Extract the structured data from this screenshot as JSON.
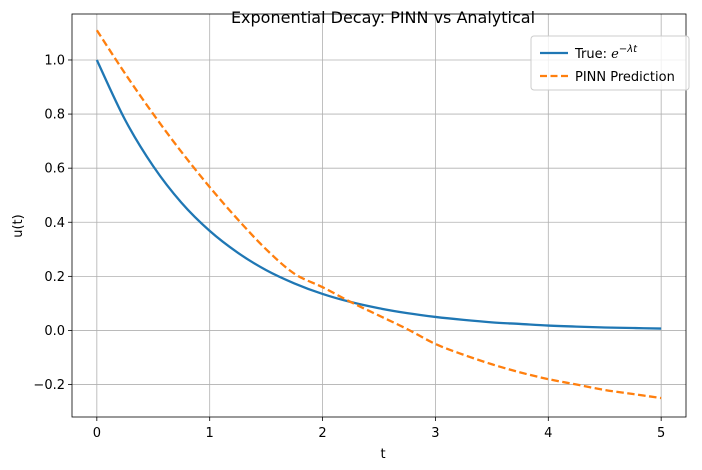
{
  "chart_data": {
    "type": "line",
    "title": "Exponential Decay: PINN vs Analytical",
    "xlabel": "t",
    "ylabel": "u(t)",
    "xlim": [
      -0.22,
      5.22
    ],
    "ylim": [
      -0.32,
      1.17
    ],
    "xticks": [
      0,
      1,
      2,
      3,
      4,
      5
    ],
    "xtick_labels": [
      "0",
      "1",
      "2",
      "3",
      "4",
      "5"
    ],
    "yticks": [
      -0.2,
      0.0,
      0.2,
      0.4,
      0.6,
      0.8,
      1.0
    ],
    "ytick_labels": [
      "−0.2",
      "0.0",
      "0.2",
      "0.4",
      "0.6",
      "0.8",
      "1.0"
    ],
    "grid": true,
    "legend_position": "top-right",
    "series": [
      {
        "name": "True: e^{−λt}",
        "legend_prefix": "True: ",
        "legend_math_base": "e",
        "legend_math_sup": "−λt",
        "color": "#1f77b4",
        "style": "solid",
        "x": [
          0,
          0.25,
          0.5,
          0.75,
          1,
          1.25,
          1.5,
          1.75,
          2,
          2.25,
          2.5,
          2.75,
          3,
          3.25,
          3.5,
          3.75,
          4,
          4.25,
          4.5,
          4.75,
          5
        ],
        "y": [
          1.0,
          0.779,
          0.607,
          0.472,
          0.368,
          0.287,
          0.223,
          0.174,
          0.135,
          0.105,
          0.082,
          0.064,
          0.05,
          0.039,
          0.03,
          0.024,
          0.018,
          0.014,
          0.011,
          0.009,
          0.007
        ]
      },
      {
        "name": "PINN Prediction",
        "color": "#ff7f0e",
        "style": "dashed",
        "x": [
          0,
          0.25,
          0.5,
          0.75,
          1,
          1.25,
          1.5,
          1.75,
          2,
          2.25,
          2.5,
          2.75,
          3,
          3.25,
          3.5,
          3.75,
          4,
          4.25,
          4.5,
          4.75,
          5
        ],
        "y": [
          1.11,
          0.95,
          0.8,
          0.66,
          0.53,
          0.41,
          0.3,
          0.21,
          0.16,
          0.105,
          0.055,
          0.005,
          -0.05,
          -0.09,
          -0.125,
          -0.155,
          -0.18,
          -0.2,
          -0.22,
          -0.235,
          -0.25
        ]
      }
    ]
  }
}
